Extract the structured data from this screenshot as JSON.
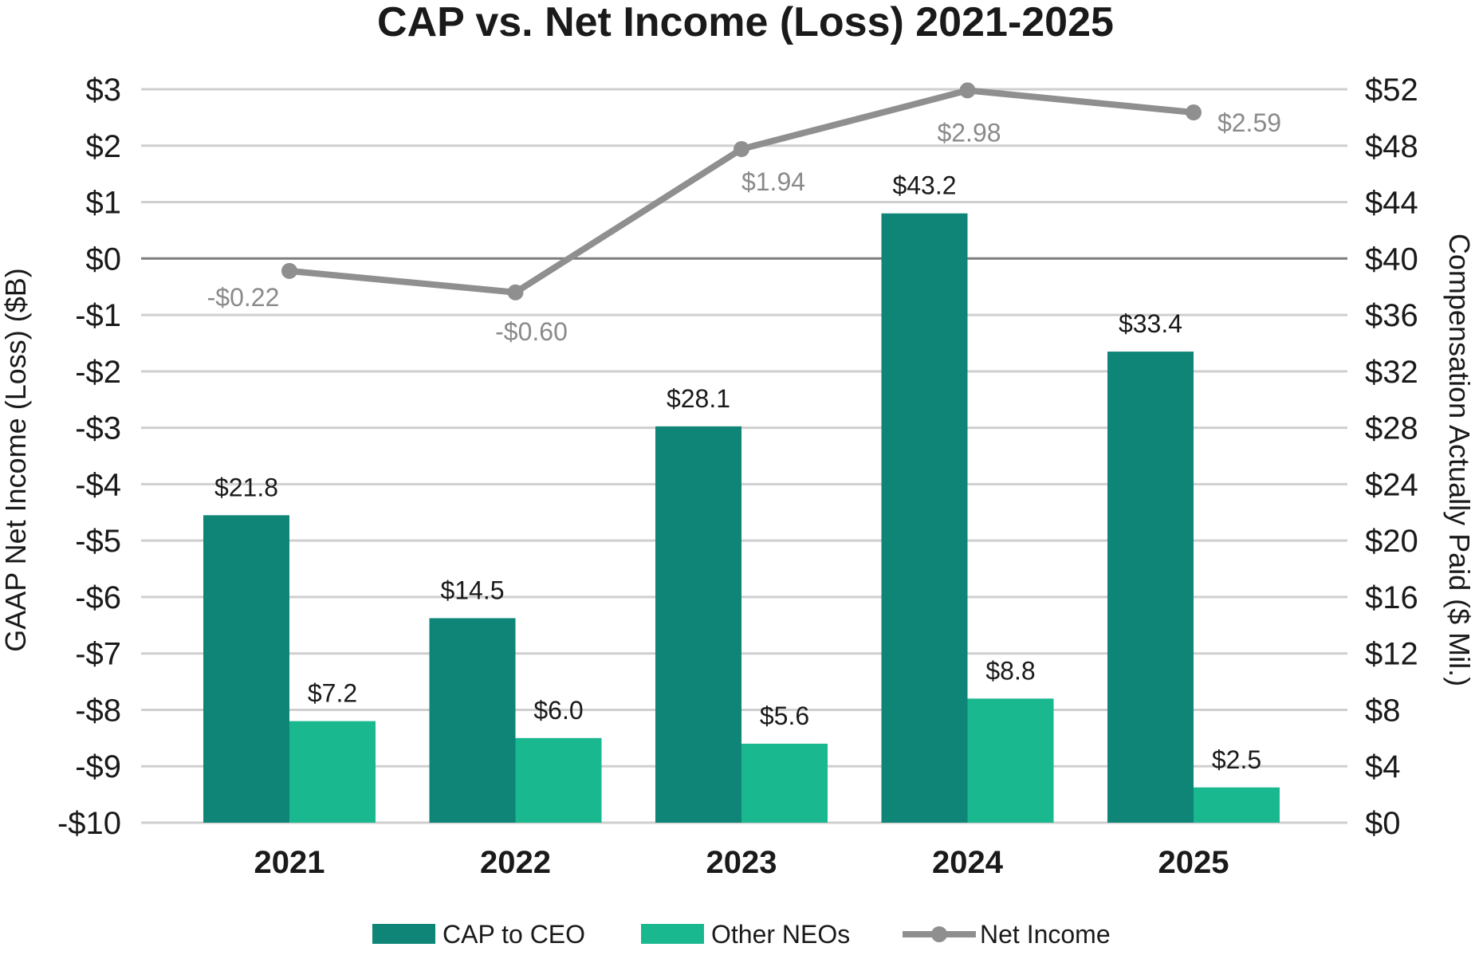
{
  "chart_data": {
    "type": "bar",
    "title": "CAP vs. Net Income (Loss) 2021-2025",
    "categories": [
      "2021",
      "2022",
      "2023",
      "2024",
      "2025"
    ],
    "y_left": {
      "label": "GAAP Net Income (Loss) ($B)",
      "range": [
        -10,
        3
      ],
      "ticks": [
        3,
        2,
        1,
        0,
        -1,
        -2,
        -3,
        -4,
        -5,
        -6,
        -7,
        -8,
        -9,
        -10
      ],
      "tick_labels": [
        "$3",
        "$2",
        "$1",
        "$0",
        "-$1",
        "-$2",
        "-$3",
        "-$4",
        "-$5",
        "-$6",
        "-$7",
        "-$8",
        "-$9",
        "-$10"
      ]
    },
    "y_right": {
      "label": "Compensation Actually Paid ($ Mil.)",
      "range": [
        0,
        52
      ],
      "ticks": [
        52,
        48,
        44,
        40,
        36,
        32,
        28,
        24,
        20,
        16,
        12,
        8,
        4,
        0
      ],
      "tick_labels": [
        "$52",
        "$48",
        "$44",
        "$40",
        "$36",
        "$32",
        "$28",
        "$24",
        "$20",
        "$16",
        "$12",
        "$8",
        "$4",
        "$0"
      ]
    },
    "grid": true,
    "legend_position": "bottom",
    "series": [
      {
        "name": "CAP to CEO",
        "type": "bar",
        "axis": "right",
        "color": "#0e8577",
        "values": [
          21.8,
          14.5,
          28.1,
          43.2,
          33.4
        ],
        "labels": [
          "$21.8",
          "$14.5",
          "$28.1",
          "$43.2",
          "$33.4"
        ]
      },
      {
        "name": "Other NEOs",
        "type": "bar",
        "axis": "right",
        "color": "#1ab88f",
        "values": [
          7.2,
          6.0,
          5.6,
          8.8,
          2.5
        ],
        "labels": [
          "$7.2",
          "$6.0",
          "$5.6",
          "$8.8",
          "$2.5"
        ]
      },
      {
        "name": "Net Income",
        "type": "line",
        "axis": "left",
        "color": "#8f8f8f",
        "values": [
          -0.22,
          -0.6,
          1.94,
          2.98,
          2.59
        ],
        "labels": [
          "-$0.22",
          "-$0.60",
          "$1.94",
          "$2.98",
          "$2.59"
        ]
      }
    ]
  }
}
